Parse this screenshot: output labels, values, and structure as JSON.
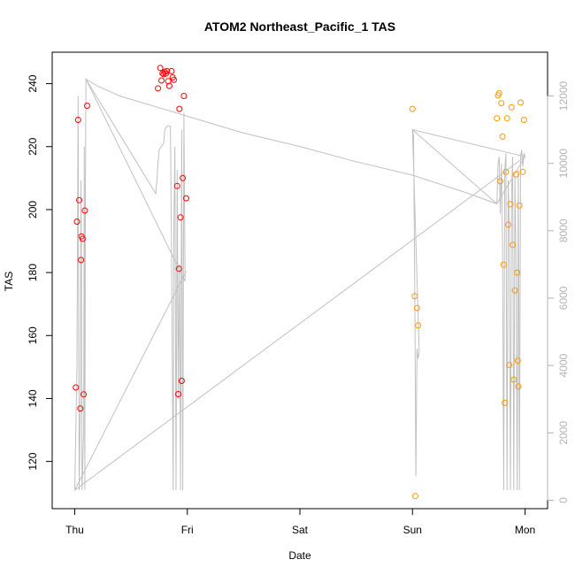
{
  "chart_data": {
    "type": "scatter",
    "title": "ATOM2 Northeast_Pacific_1 TAS",
    "xlabel": "Date",
    "ylabel": "TAS",
    "x_ticks": [
      {
        "label": "Thu",
        "value": 0
      },
      {
        "label": "Fri",
        "value": 1
      },
      {
        "label": "Sat",
        "value": 2
      },
      {
        "label": "Sun",
        "value": 3
      },
      {
        "label": "Mon",
        "value": 4
      }
    ],
    "xlim": [
      -0.2,
      4.2
    ],
    "ylim": [
      105,
      250
    ],
    "y_ticks": [
      120,
      140,
      160,
      180,
      200,
      220,
      240
    ],
    "y2_ticks": [
      0,
      2000,
      4000,
      6000,
      8000,
      10000,
      12000
    ],
    "y2lim": [
      -250,
      13300
    ],
    "grid": false,
    "series": [
      {
        "color": "#ff0000",
        "points": [
          {
            "x": 0.01,
            "y": 143.5
          },
          {
            "x": 0.02,
            "y": 196.2
          },
          {
            "x": 0.03,
            "y": 228.5
          },
          {
            "x": 0.04,
            "y": 203.0
          },
          {
            "x": 0.05,
            "y": 136.8
          },
          {
            "x": 0.055,
            "y": 184.0
          },
          {
            "x": 0.06,
            "y": 191.5
          },
          {
            "x": 0.07,
            "y": 190.7
          },
          {
            "x": 0.08,
            "y": 141.3
          },
          {
            "x": 0.09,
            "y": 199.7
          },
          {
            "x": 0.11,
            "y": 233.0
          },
          {
            "x": 0.74,
            "y": 238.5
          },
          {
            "x": 0.76,
            "y": 245.0
          },
          {
            "x": 0.77,
            "y": 241.0
          },
          {
            "x": 0.78,
            "y": 243.3
          },
          {
            "x": 0.79,
            "y": 243.0
          },
          {
            "x": 0.8,
            "y": 243.8
          },
          {
            "x": 0.81,
            "y": 243.2
          },
          {
            "x": 0.82,
            "y": 244.0
          },
          {
            "x": 0.83,
            "y": 240.8
          },
          {
            "x": 0.84,
            "y": 239.3
          },
          {
            "x": 0.86,
            "y": 244.0
          },
          {
            "x": 0.87,
            "y": 242.0
          },
          {
            "x": 0.88,
            "y": 241.2
          },
          {
            "x": 0.91,
            "y": 207.5
          },
          {
            "x": 0.92,
            "y": 141.4
          },
          {
            "x": 0.925,
            "y": 181.2
          },
          {
            "x": 0.93,
            "y": 232.0
          },
          {
            "x": 0.94,
            "y": 197.5
          },
          {
            "x": 0.95,
            "y": 145.6
          },
          {
            "x": 0.96,
            "y": 210.0
          },
          {
            "x": 0.97,
            "y": 236.1
          },
          {
            "x": 0.99,
            "y": 203.6
          }
        ]
      },
      {
        "color": "#ff9900",
        "points": [
          {
            "x": 3.0,
            "y": 232.0
          },
          {
            "x": 3.02,
            "y": 172.5
          },
          {
            "x": 3.025,
            "y": 109.0
          },
          {
            "x": 3.04,
            "y": 168.7
          },
          {
            "x": 3.05,
            "y": 163.2
          },
          {
            "x": 3.75,
            "y": 229.0
          },
          {
            "x": 3.76,
            "y": 236.3
          },
          {
            "x": 3.77,
            "y": 237.0
          },
          {
            "x": 3.78,
            "y": 209.0
          },
          {
            "x": 3.79,
            "y": 233.8
          },
          {
            "x": 3.8,
            "y": 223.2
          },
          {
            "x": 3.81,
            "y": 182.5
          },
          {
            "x": 3.82,
            "y": 138.6
          },
          {
            "x": 3.83,
            "y": 212.0
          },
          {
            "x": 3.84,
            "y": 229.0
          },
          {
            "x": 3.85,
            "y": 195.2
          },
          {
            "x": 3.86,
            "y": 150.6
          },
          {
            "x": 3.87,
            "y": 201.7
          },
          {
            "x": 3.88,
            "y": 232.5
          },
          {
            "x": 3.89,
            "y": 188.8
          },
          {
            "x": 3.9,
            "y": 146.0
          },
          {
            "x": 3.91,
            "y": 174.3
          },
          {
            "x": 3.92,
            "y": 211.2
          },
          {
            "x": 3.93,
            "y": 180.0
          },
          {
            "x": 3.935,
            "y": 152.0
          },
          {
            "x": 3.94,
            "y": 143.8
          },
          {
            "x": 3.95,
            "y": 201.3
          },
          {
            "x": 3.96,
            "y": 234.0
          },
          {
            "x": 3.98,
            "y": 212.0
          },
          {
            "x": 3.99,
            "y": 228.5
          }
        ]
      }
    ],
    "altitude_line": {
      "color": "#c0c0c0",
      "points": [
        {
          "x": 0.0,
          "y": 300
        },
        {
          "x": 0.02,
          "y": 4000
        },
        {
          "x": 0.03,
          "y": 12000
        },
        {
          "x": 0.035,
          "y": 5000
        },
        {
          "x": 0.04,
          "y": 300
        },
        {
          "x": 0.05,
          "y": 3000
        },
        {
          "x": 0.055,
          "y": 9500
        },
        {
          "x": 0.06,
          "y": 7000
        },
        {
          "x": 0.065,
          "y": 300
        },
        {
          "x": 0.08,
          "y": 2000
        },
        {
          "x": 0.085,
          "y": 10500
        },
        {
          "x": 0.09,
          "y": 300
        },
        {
          "x": 0.095,
          "y": 9000
        },
        {
          "x": 0.1,
          "y": 12500
        },
        {
          "x": 0.72,
          "y": 9100
        },
        {
          "x": 0.73,
          "y": 9500
        },
        {
          "x": 0.74,
          "y": 10000
        },
        {
          "x": 0.75,
          "y": 10400
        },
        {
          "x": 0.77,
          "y": 10500
        },
        {
          "x": 0.79,
          "y": 10600
        },
        {
          "x": 0.8,
          "y": 11000
        },
        {
          "x": 0.82,
          "y": 11100
        },
        {
          "x": 0.85,
          "y": 11100
        },
        {
          "x": 0.86,
          "y": 7500
        },
        {
          "x": 0.875,
          "y": 300
        },
        {
          "x": 0.88,
          "y": 8000
        },
        {
          "x": 0.89,
          "y": 10500
        },
        {
          "x": 0.9,
          "y": 300
        },
        {
          "x": 0.91,
          "y": 9800
        },
        {
          "x": 0.92,
          "y": 3000
        },
        {
          "x": 0.93,
          "y": 7000
        },
        {
          "x": 0.94,
          "y": 300
        },
        {
          "x": 0.95,
          "y": 11000
        },
        {
          "x": 0.96,
          "y": 300
        },
        {
          "x": 0.97,
          "y": 11500
        },
        {
          "x": 0.98,
          "y": 6500
        },
        {
          "x": 0.1,
          "y": 12500
        },
        {
          "x": 0.2,
          "y": 12300
        },
        {
          "x": 0.4,
          "y": 12000
        },
        {
          "x": 0.6,
          "y": 11800
        },
        {
          "x": 0.8,
          "y": 11600
        },
        {
          "x": 1.0,
          "y": 11400
        },
        {
          "x": 1.2,
          "y": 11200
        },
        {
          "x": 1.5,
          "y": 10900
        },
        {
          "x": 2.0,
          "y": 10500
        },
        {
          "x": 2.5,
          "y": 10050
        },
        {
          "x": 3.0,
          "y": 9650
        },
        {
          "x": 3.5,
          "y": 9100
        },
        {
          "x": 3.75,
          "y": 8800
        },
        {
          "x": 3.76,
          "y": 10000
        },
        {
          "x": 3.77,
          "y": 10200
        },
        {
          "x": 3.78,
          "y": 8500
        },
        {
          "x": 3.79,
          "y": 10000
        },
        {
          "x": 3.8,
          "y": 7500
        },
        {
          "x": 3.81,
          "y": 300
        },
        {
          "x": 3.82,
          "y": 9800
        },
        {
          "x": 3.83,
          "y": 10300
        },
        {
          "x": 3.84,
          "y": 300
        },
        {
          "x": 3.85,
          "y": 9500
        },
        {
          "x": 3.86,
          "y": 8000
        },
        {
          "x": 3.87,
          "y": 300
        },
        {
          "x": 3.88,
          "y": 9000
        },
        {
          "x": 3.89,
          "y": 10200
        },
        {
          "x": 3.9,
          "y": 300
        },
        {
          "x": 3.91,
          "y": 9600
        },
        {
          "x": 3.92,
          "y": 7000
        },
        {
          "x": 3.93,
          "y": 300
        },
        {
          "x": 3.94,
          "y": 9800
        },
        {
          "x": 3.95,
          "y": 300
        },
        {
          "x": 3.96,
          "y": 10200
        },
        {
          "x": 3.97,
          "y": 10400
        },
        {
          "x": 3.98,
          "y": 9900
        },
        {
          "x": 3.99,
          "y": 10300
        },
        {
          "x": 4.0,
          "y": 10200
        },
        {
          "x": 3.0,
          "y": 11000
        },
        {
          "x": 3.01,
          "y": 10800
        },
        {
          "x": 3.02,
          "y": 6500
        },
        {
          "x": 3.03,
          "y": 700
        },
        {
          "x": 3.04,
          "y": 4500
        },
        {
          "x": 3.05,
          "y": 4200
        },
        {
          "x": 3.06,
          "y": 4400
        },
        {
          "x": 3.0,
          "y": 11000
        },
        {
          "x": 3.75,
          "y": 8800
        },
        {
          "x": 4.0,
          "y": 10200
        },
        {
          "x": 0.0,
          "y": 300
        },
        {
          "x": 0.99,
          "y": 6800
        }
      ]
    }
  }
}
